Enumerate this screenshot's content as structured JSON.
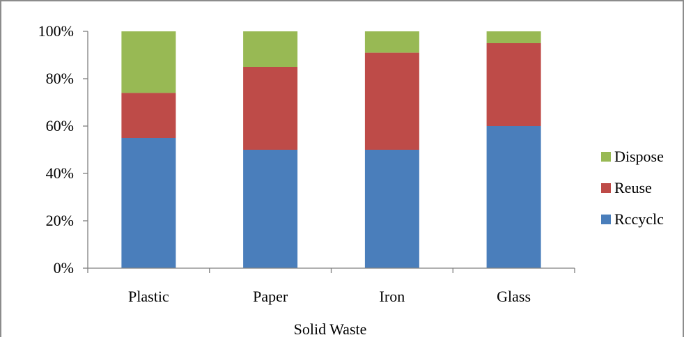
{
  "chart_data": {
    "type": "bar",
    "stacked": true,
    "normalized": true,
    "categories": [
      "Plastic",
      "Paper",
      "Iron",
      "Glass"
    ],
    "series": [
      {
        "name": "Recycle",
        "color": "#4a7ebb",
        "values": [
          55,
          50,
          50,
          60
        ]
      },
      {
        "name": "Reuse",
        "color": "#be4b48",
        "values": [
          19,
          35,
          41,
          35
        ]
      },
      {
        "name": "Dispose",
        "color": "#98b954",
        "values": [
          26,
          15,
          9,
          5
        ]
      }
    ],
    "title": "",
    "xlabel": "Solid Waste",
    "ylabel": "",
    "ylim": [
      0,
      100
    ],
    "y_ticks": [
      "0%",
      "20%",
      "40%",
      "60%",
      "80%",
      "100%"
    ],
    "grid": false,
    "legend": {
      "position": "right",
      "entries": [
        {
          "label": "Dispose",
          "color": "#98b954"
        },
        {
          "label": "Reuse",
          "color": "#be4b48"
        },
        {
          "label": "Rccyclc",
          "color": "#4a7ebb"
        }
      ]
    }
  }
}
